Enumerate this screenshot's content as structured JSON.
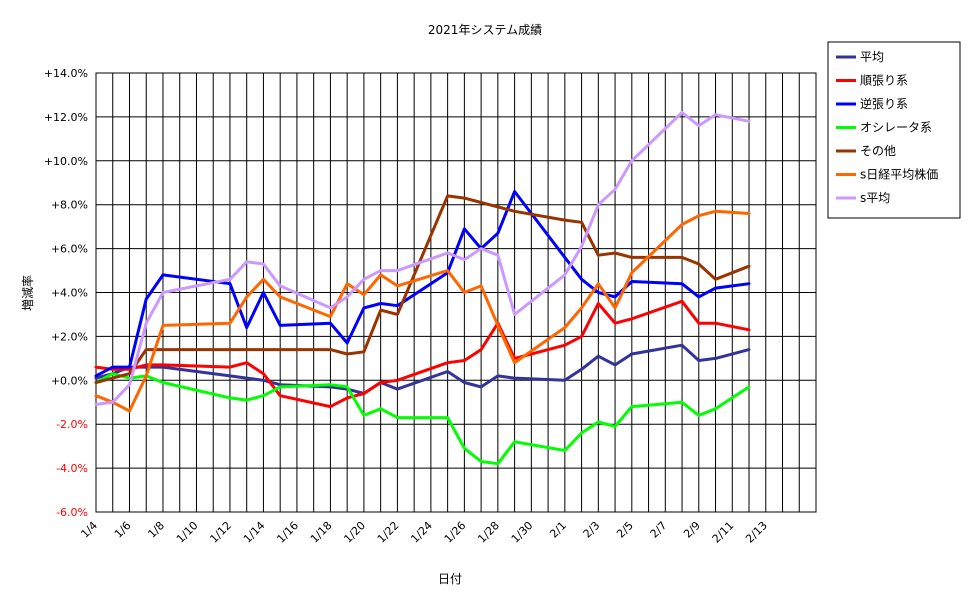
{
  "chart_data": {
    "type": "line",
    "title": "2021年システム成績",
    "xlabel": "日付",
    "ylabel": "増減率",
    "ylim": [
      -6.0,
      14.0
    ],
    "y_ticks": [
      14,
      12,
      10,
      8,
      6,
      4,
      2,
      0,
      -2,
      -4,
      -6
    ],
    "y_tick_labels": [
      "+14.0%",
      "+12.0%",
      "+10.0%",
      "+8.0%",
      "+6.0%",
      "+4.0%",
      "+2.0%",
      "+0.0%",
      "-2.0%",
      "-4.0%",
      "-6.0%"
    ],
    "x_range": [
      "1/4",
      "2/16"
    ],
    "x_tick_labels": [
      "1/4",
      "1/6",
      "1/8",
      "1/10",
      "1/12",
      "1/14",
      "1/16",
      "1/18",
      "1/20",
      "1/22",
      "1/24",
      "1/26",
      "1/28",
      "1/30",
      "2/1",
      "2/3",
      "2/5",
      "2/7",
      "2/9",
      "2/11",
      "2/13"
    ],
    "x": [
      "1/4",
      "1/5",
      "1/6",
      "1/7",
      "1/8",
      "1/12",
      "1/13",
      "1/14",
      "1/15",
      "1/18",
      "1/19",
      "1/20",
      "1/21",
      "1/22",
      "1/25",
      "1/26",
      "1/27",
      "1/28",
      "1/29",
      "2/1",
      "2/2",
      "2/3",
      "2/4",
      "2/5",
      "2/8",
      "2/9",
      "2/10",
      "2/12"
    ],
    "grid": true,
    "legend_position": "right",
    "series": [
      {
        "name": "平均",
        "color": "#333399",
        "values": [
          0.1,
          0.3,
          0.6,
          0.6,
          0.6,
          0.2,
          0.1,
          0.0,
          -0.2,
          -0.3,
          -0.4,
          -0.6,
          -0.1,
          -0.4,
          0.4,
          -0.1,
          -0.3,
          0.2,
          0.1,
          0.0,
          0.5,
          1.1,
          0.7,
          1.2,
          1.6,
          0.9,
          1.0,
          1.4
        ]
      },
      {
        "name": "順張り系",
        "color": "#ff0000",
        "values": [
          0.6,
          0.5,
          0.5,
          0.7,
          0.7,
          0.6,
          0.8,
          0.3,
          -0.7,
          -1.2,
          -0.8,
          -0.6,
          -0.1,
          0.0,
          0.8,
          0.9,
          1.4,
          2.6,
          1.0,
          1.6,
          2.0,
          3.5,
          2.6,
          2.8,
          3.6,
          2.6,
          2.6,
          2.3
        ]
      },
      {
        "name": "逆張り系",
        "color": "#0000ff",
        "values": [
          0.2,
          0.6,
          0.6,
          3.7,
          4.8,
          4.4,
          2.4,
          4.0,
          2.5,
          2.6,
          1.7,
          3.3,
          3.5,
          3.4,
          4.9,
          6.9,
          6.0,
          6.7,
          8.6,
          5.6,
          4.6,
          4.0,
          3.8,
          4.5,
          4.4,
          3.8,
          4.2,
          4.4
        ]
      },
      {
        "name": "オシレータ系",
        "color": "#00ff00",
        "values": [
          -0.1,
          0.3,
          0.1,
          0.2,
          -0.1,
          -0.8,
          -0.9,
          -0.7,
          -0.3,
          -0.2,
          -0.3,
          -1.6,
          -1.3,
          -1.7,
          -1.7,
          -3.1,
          -3.7,
          -3.8,
          -2.8,
          -3.2,
          -2.4,
          -1.9,
          -2.1,
          -1.2,
          -1.0,
          -1.6,
          -1.3,
          -0.3
        ]
      },
      {
        "name": "その他",
        "color": "#993300",
        "values": [
          -0.1,
          0.1,
          0.3,
          1.4,
          1.4,
          1.4,
          1.4,
          1.4,
          1.4,
          1.4,
          1.2,
          1.3,
          3.2,
          3.0,
          8.4,
          8.3,
          8.1,
          7.9,
          7.7,
          7.3,
          7.2,
          5.7,
          5.8,
          5.6,
          5.6,
          5.3,
          4.6,
          5.2
        ]
      },
      {
        "name": "s日経平均株価",
        "color": "#ff6600",
        "values": [
          -0.7,
          -1.0,
          -1.4,
          0.2,
          2.5,
          2.6,
          3.8,
          4.6,
          3.8,
          2.9,
          4.4,
          3.9,
          4.8,
          4.3,
          5.0,
          4.0,
          4.3,
          2.5,
          0.8,
          2.4,
          3.3,
          4.4,
          3.3,
          4.9,
          7.1,
          7.5,
          7.7,
          7.6
        ]
      },
      {
        "name": "s平均",
        "color": "#cc99ff",
        "values": [
          -1.1,
          -1.0,
          -0.2,
          2.6,
          4.0,
          4.6,
          5.4,
          5.3,
          4.3,
          3.3,
          3.8,
          4.6,
          5.0,
          5.0,
          5.8,
          5.5,
          6.0,
          5.7,
          3.0,
          4.8,
          6.1,
          8.0,
          8.7,
          10.0,
          12.2,
          11.6,
          12.1,
          11.8
        ]
      }
    ]
  }
}
